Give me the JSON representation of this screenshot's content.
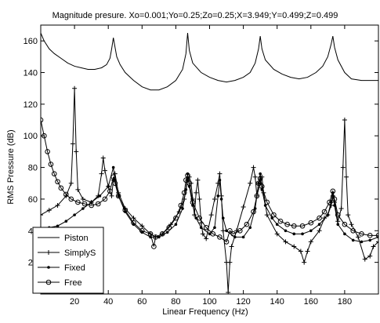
{
  "chart_data": {
    "type": "line",
    "title": "Magnitude presure. Xo=0.001;Yo=0.25;Zo=0.25;X=3.949;Y=0.499;Z=0.499",
    "xlabel": "Linear Frequency (Hz)",
    "ylabel": "RMS Pressure (dB)",
    "xlim": [
      0,
      200
    ],
    "ylim": [
      0,
      170
    ],
    "xticks": [
      20,
      40,
      60,
      80,
      100,
      120,
      140,
      160,
      180
    ],
    "yticks": [
      20,
      40,
      60,
      80,
      100,
      120,
      140,
      160
    ],
    "grid": false,
    "legend_position": "bottom-left",
    "series": [
      {
        "name": "Piston",
        "marker": "none",
        "points": [
          [
            0,
            165
          ],
          [
            2,
            160
          ],
          [
            5,
            155
          ],
          [
            8,
            152
          ],
          [
            12,
            149
          ],
          [
            16,
            146
          ],
          [
            20,
            144
          ],
          [
            24,
            143
          ],
          [
            28,
            142
          ],
          [
            32,
            142
          ],
          [
            36,
            143
          ],
          [
            39,
            145
          ],
          [
            41,
            149
          ],
          [
            42,
            155
          ],
          [
            43,
            162
          ],
          [
            44,
            156
          ],
          [
            45,
            150
          ],
          [
            47,
            145
          ],
          [
            50,
            140
          ],
          [
            55,
            135
          ],
          [
            60,
            131
          ],
          [
            65,
            129
          ],
          [
            70,
            129
          ],
          [
            75,
            131
          ],
          [
            80,
            135
          ],
          [
            84,
            142
          ],
          [
            86,
            152
          ],
          [
            87,
            165
          ],
          [
            88,
            154
          ],
          [
            90,
            146
          ],
          [
            95,
            140
          ],
          [
            100,
            137
          ],
          [
            105,
            135
          ],
          [
            110,
            134
          ],
          [
            115,
            135
          ],
          [
            120,
            137
          ],
          [
            124,
            140
          ],
          [
            127,
            146
          ],
          [
            129,
            155
          ],
          [
            130,
            163
          ],
          [
            131,
            155
          ],
          [
            133,
            148
          ],
          [
            138,
            142
          ],
          [
            143,
            139
          ],
          [
            148,
            137
          ],
          [
            153,
            136
          ],
          [
            158,
            137
          ],
          [
            163,
            140
          ],
          [
            167,
            144
          ],
          [
            170,
            150
          ],
          [
            172,
            158
          ],
          [
            173,
            163
          ],
          [
            174,
            156
          ],
          [
            176,
            148
          ],
          [
            180,
            140
          ],
          [
            184,
            136
          ],
          [
            190,
            135
          ],
          [
            200,
            135
          ]
        ]
      },
      {
        "name": "SimplyS",
        "marker": "plus",
        "points": [
          [
            0,
            50
          ],
          [
            5,
            53
          ],
          [
            10,
            56
          ],
          [
            15,
            62
          ],
          [
            18,
            70
          ],
          [
            19,
            95
          ],
          [
            20,
            130
          ],
          [
            21,
            90
          ],
          [
            22,
            66
          ],
          [
            25,
            60
          ],
          [
            30,
            58
          ],
          [
            34,
            62
          ],
          [
            36,
            76
          ],
          [
            37,
            86
          ],
          [
            38,
            78
          ],
          [
            40,
            68
          ],
          [
            42,
            62
          ],
          [
            43,
            72
          ],
          [
            44,
            76
          ],
          [
            46,
            64
          ],
          [
            50,
            54
          ],
          [
            55,
            48
          ],
          [
            60,
            43
          ],
          [
            65,
            38
          ],
          [
            68,
            36
          ],
          [
            72,
            38
          ],
          [
            77,
            44
          ],
          [
            82,
            52
          ],
          [
            85,
            60
          ],
          [
            87,
            72
          ],
          [
            88,
            74
          ],
          [
            89,
            70
          ],
          [
            90,
            60
          ],
          [
            91,
            50
          ],
          [
            92,
            64
          ],
          [
            93,
            72
          ],
          [
            94,
            60
          ],
          [
            95,
            45
          ],
          [
            96,
            38
          ],
          [
            98,
            35
          ],
          [
            101,
            50
          ],
          [
            103,
            60
          ],
          [
            105,
            70
          ],
          [
            106,
            76
          ],
          [
            107,
            62
          ],
          [
            108,
            40
          ],
          [
            110,
            20
          ],
          [
            111,
            1
          ],
          [
            112,
            20
          ],
          [
            113,
            30
          ],
          [
            116,
            40
          ],
          [
            120,
            55
          ],
          [
            124,
            70
          ],
          [
            126,
            80
          ],
          [
            127,
            74
          ],
          [
            128,
            62
          ],
          [
            130,
            70
          ],
          [
            131,
            74
          ],
          [
            132,
            64
          ],
          [
            134,
            50
          ],
          [
            140,
            38
          ],
          [
            145,
            33
          ],
          [
            150,
            30
          ],
          [
            154,
            27
          ],
          [
            156,
            20
          ],
          [
            158,
            27
          ],
          [
            160,
            33
          ],
          [
            165,
            40
          ],
          [
            168,
            48
          ],
          [
            170,
            50
          ],
          [
            172,
            56
          ],
          [
            173,
            62
          ],
          [
            174,
            58
          ],
          [
            176,
            46
          ],
          [
            178,
            54
          ],
          [
            179,
            80
          ],
          [
            180,
            110
          ],
          [
            181,
            74
          ],
          [
            182,
            50
          ],
          [
            184,
            44
          ],
          [
            188,
            36
          ],
          [
            192,
            22
          ],
          [
            195,
            24
          ],
          [
            197,
            30
          ],
          [
            200,
            33
          ]
        ]
      },
      {
        "name": "Fixed",
        "marker": "dot",
        "points": [
          [
            0,
            41
          ],
          [
            5,
            42
          ],
          [
            10,
            43
          ],
          [
            15,
            46
          ],
          [
            20,
            50
          ],
          [
            25,
            54
          ],
          [
            30,
            58
          ],
          [
            35,
            62
          ],
          [
            40,
            68
          ],
          [
            43,
            80
          ],
          [
            44,
            72
          ],
          [
            46,
            62
          ],
          [
            50,
            52
          ],
          [
            55,
            44
          ],
          [
            60,
            39
          ],
          [
            65,
            36
          ],
          [
            70,
            36
          ],
          [
            75,
            39
          ],
          [
            80,
            44
          ],
          [
            84,
            54
          ],
          [
            86,
            66
          ],
          [
            87,
            76
          ],
          [
            88,
            68
          ],
          [
            90,
            56
          ],
          [
            92,
            48
          ],
          [
            95,
            42
          ],
          [
            100,
            38
          ],
          [
            103,
            42
          ],
          [
            105,
            62
          ],
          [
            106,
            72
          ],
          [
            107,
            60
          ],
          [
            108,
            48
          ],
          [
            110,
            40
          ],
          [
            115,
            36
          ],
          [
            120,
            36
          ],
          [
            124,
            42
          ],
          [
            127,
            54
          ],
          [
            129,
            70
          ],
          [
            130,
            76
          ],
          [
            131,
            66
          ],
          [
            133,
            56
          ],
          [
            137,
            48
          ],
          [
            140,
            44
          ],
          [
            145,
            40
          ],
          [
            150,
            38
          ],
          [
            155,
            38
          ],
          [
            160,
            40
          ],
          [
            165,
            44
          ],
          [
            170,
            50
          ],
          [
            172,
            58
          ],
          [
            173,
            64
          ],
          [
            174,
            56
          ],
          [
            176,
            44
          ],
          [
            180,
            38
          ],
          [
            185,
            34
          ],
          [
            190,
            33
          ],
          [
            195,
            34
          ],
          [
            200,
            36
          ]
        ]
      },
      {
        "name": "Free",
        "marker": "circle",
        "points": [
          [
            0,
            110
          ],
          [
            2,
            100
          ],
          [
            4,
            90
          ],
          [
            6,
            82
          ],
          [
            8,
            76
          ],
          [
            10,
            71
          ],
          [
            12,
            67
          ],
          [
            15,
            63
          ],
          [
            18,
            60
          ],
          [
            22,
            58
          ],
          [
            26,
            57
          ],
          [
            30,
            56
          ],
          [
            34,
            57
          ],
          [
            38,
            60
          ],
          [
            41,
            65
          ],
          [
            43,
            74
          ],
          [
            44,
            70
          ],
          [
            46,
            62
          ],
          [
            50,
            53
          ],
          [
            55,
            45
          ],
          [
            60,
            40
          ],
          [
            65,
            38
          ],
          [
            67,
            30
          ],
          [
            68,
            36
          ],
          [
            72,
            38
          ],
          [
            76,
            42
          ],
          [
            80,
            48
          ],
          [
            83,
            56
          ],
          [
            85,
            64
          ],
          [
            86,
            72
          ],
          [
            87,
            75
          ],
          [
            88,
            70
          ],
          [
            90,
            58
          ],
          [
            94,
            48
          ],
          [
            98,
            42
          ],
          [
            102,
            38
          ],
          [
            106,
            36
          ],
          [
            110,
            33
          ],
          [
            112,
            40
          ],
          [
            114,
            38
          ],
          [
            118,
            40
          ],
          [
            122,
            44
          ],
          [
            126,
            52
          ],
          [
            128,
            62
          ],
          [
            129,
            70
          ],
          [
            130,
            73
          ],
          [
            131,
            68
          ],
          [
            134,
            58
          ],
          [
            138,
            50
          ],
          [
            142,
            46
          ],
          [
            146,
            44
          ],
          [
            150,
            43
          ],
          [
            155,
            43
          ],
          [
            160,
            45
          ],
          [
            165,
            48
          ],
          [
            168,
            52
          ],
          [
            171,
            58
          ],
          [
            173,
            65
          ],
          [
            174,
            60
          ],
          [
            176,
            50
          ],
          [
            180,
            44
          ],
          [
            185,
            40
          ],
          [
            190,
            38
          ],
          [
            195,
            37
          ],
          [
            200,
            37
          ]
        ]
      }
    ]
  }
}
